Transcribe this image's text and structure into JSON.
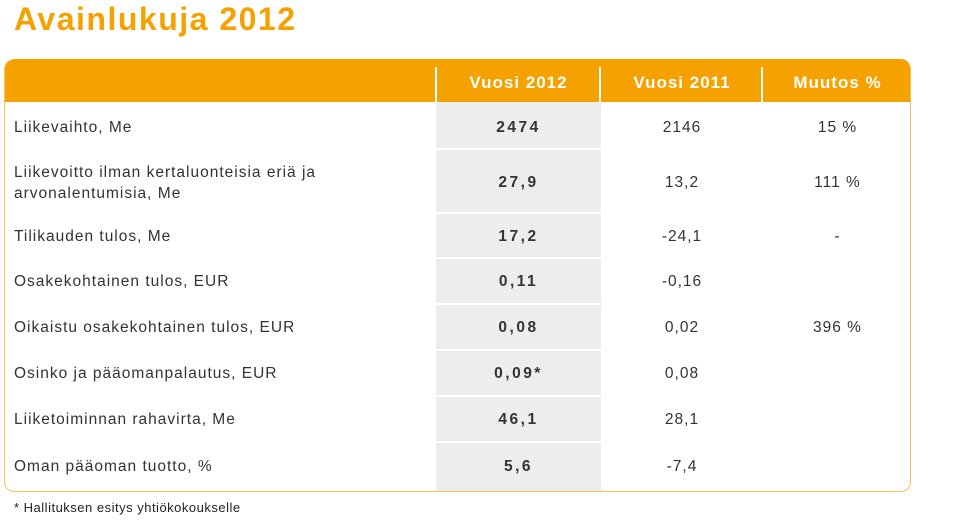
{
  "title": "Avainlukuja 2012",
  "columns": {
    "y2012": "Vuosi 2012",
    "y2011": "Vuosi 2011",
    "change": "Muutos %"
  },
  "rows": [
    {
      "label": "Liikevaihto, Me",
      "v2012": "2474",
      "v2011": "2146",
      "change": "15 %"
    },
    {
      "label_line1": "Liikevoitto ilman kertaluonteisia eriä ja",
      "label_line2": "arvonalentumisia, Me",
      "v2012": "27,9",
      "v2011": "13,2",
      "change": "111 %"
    },
    {
      "label": "Tilikauden tulos, Me",
      "v2012": "17,2",
      "v2011": "-24,1",
      "change": "-"
    },
    {
      "label": "Osakekohtainen tulos, EUR",
      "v2012": "0,11",
      "v2011": "-0,16",
      "change": ""
    },
    {
      "label": "Oikaistu osakekohtainen tulos, EUR",
      "v2012": "0,08",
      "v2011": "0,02",
      "change": "396 %"
    },
    {
      "label": "Osinko ja pääomanpalautus, EUR",
      "v2012": "0,09*",
      "v2011": "0,08",
      "change": ""
    },
    {
      "label": "Liiketoiminnan rahavirta, Me",
      "v2012": "46,1",
      "v2011": "28,1",
      "change": ""
    },
    {
      "label": "Oman pääoman tuotto, %",
      "v2012": "5,6",
      "v2011": "-7,4",
      "change": ""
    }
  ],
  "footnote": "* Hallituksen esitys yhtiökokoukselle",
  "colors": {
    "accent": "#f5a100",
    "highlight": "#ededed",
    "text": "#333333"
  }
}
